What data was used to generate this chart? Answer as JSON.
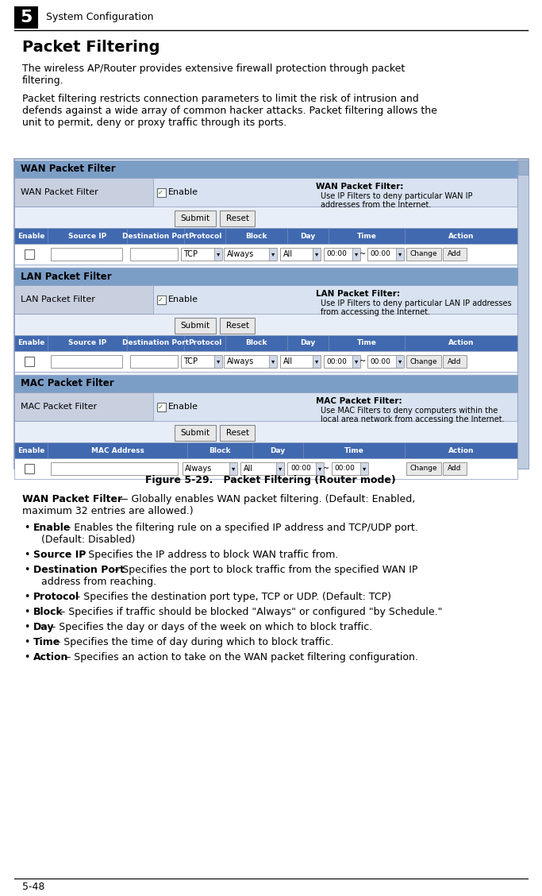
{
  "page_number": "5",
  "chapter_title": "System Configuration",
  "section_title": "Packet Filtering",
  "para1": "The wireless AP/Router provides extensive firewall protection through packet\nfiltering.",
  "para2": "Packet filtering restricts connection parameters to limit the risk of intrusion and\ndefends against a wide array of common hacker attacks. Packet filtering allows the\nunit to permit, deny or proxy traffic through its ports.",
  "figure_caption": "Figure 5-29.   Packet Filtering (Router mode)",
  "footer_text": "5-48",
  "bg_color": "#ffffff",
  "panel_header_bg": "#7b9ec7",
  "table_header_bg": "#4169b0",
  "table_header_fg": "#ffffff",
  "label_cell_bg": "#c8d0e0",
  "info_row_bg": "#d8e2f0",
  "border_color": "#8899bb",
  "scrollbar_bg": "#c0cce0",
  "button_bg": "#e8e8e8",
  "input_bg": "#ffffff",
  "dropdown_arrow_bg": "#d0d8e8",
  "ui_bg": "#e8eef8",
  "bullet_items": [
    [
      "Enable",
      " – Enables the filtering rule on a specified IP address and TCP/UDP port.",
      "(Default: Disabled)"
    ],
    [
      "Source IP",
      " – Specifies the IP address to block WAN traffic from.",
      ""
    ],
    [
      "Destination Port",
      " – Specifies the port to block traffic from the specified WAN IP",
      "address from reaching."
    ],
    [
      "Protocol",
      " – Specifies the destination port type, TCP or UDP. (Default: TCP)",
      ""
    ],
    [
      "Block",
      " – Specifies if traffic should be blocked \"Always\" or configured \"by Schedule.\"",
      ""
    ],
    [
      "Day",
      " – Specifies the day or days of the week on which to block traffic.",
      ""
    ],
    [
      "Time",
      " – Specifies the time of day during which to block traffic.",
      ""
    ],
    [
      "Action",
      " – Specifies an action to take on the WAN packet filtering configuration.",
      ""
    ]
  ]
}
